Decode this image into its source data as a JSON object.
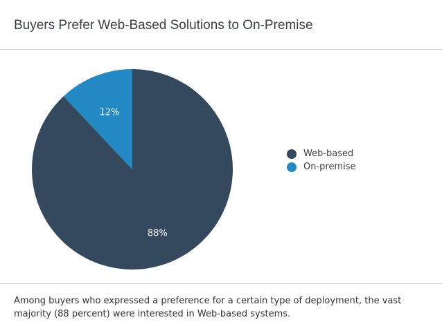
{
  "header": {
    "title": "Buyers Prefer Web-Based Solutions to On-Premise"
  },
  "chart_data": {
    "type": "pie",
    "title": "Buyers Prefer Web-Based Solutions to On-Premise",
    "slices": [
      {
        "name": "Web-based",
        "value": 88,
        "label": "88%",
        "color": "#34495e"
      },
      {
        "name": "On-premise",
        "value": 12,
        "label": "12%",
        "color": "#2389c5"
      }
    ],
    "start_angle": "12 o'clock",
    "direction": "clockwise",
    "legend_position": "right"
  },
  "legend": {
    "items": [
      {
        "label": "Web-based",
        "color": "#34495e"
      },
      {
        "label": "On-premise",
        "color": "#2389c5"
      }
    ]
  },
  "caption": {
    "text": "Among buyers who expressed a preference for a certain type of deployment, the vast majority (88 percent) were interested in Web-based systems."
  }
}
